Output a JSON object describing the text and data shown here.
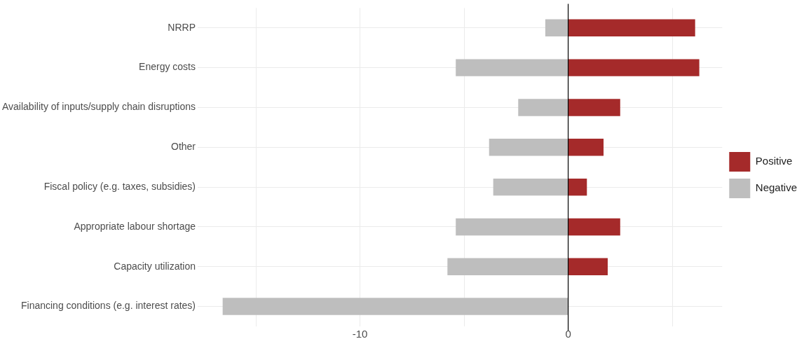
{
  "chart_data": {
    "type": "bar",
    "orientation": "horizontal",
    "stacked": true,
    "categories": [
      "NRRP",
      "Energy costs",
      "Availability of inputs/supply chain disruptions",
      "Other",
      "Fiscal policy (e.g. taxes, subsidies)",
      "Appropriate labour shortage",
      "Capacity utilization",
      "Financing conditions (e.g. interest rates)"
    ],
    "series": [
      {
        "name": "Positive",
        "color": "#a52a2a",
        "values": [
          6.1,
          6.3,
          2.5,
          1.7,
          0.9,
          2.5,
          1.9,
          0
        ]
      },
      {
        "name": "Negative",
        "color": "#bebebe",
        "values": [
          -1.1,
          -5.4,
          -2.4,
          -3.8,
          -3.6,
          -5.4,
          -5.8,
          -16.6
        ]
      }
    ],
    "xlim": [
      -17.8,
      7.4
    ],
    "xticks": [
      {
        "value": -15,
        "label": null
      },
      -10,
      {
        "value": -5,
        "label": null
      },
      0,
      {
        "value": 5,
        "label": null
      }
    ],
    "ref_lines": [
      {
        "axis": "x",
        "value": 0,
        "color": "#000000"
      }
    ],
    "grid": true,
    "legend": "right"
  }
}
